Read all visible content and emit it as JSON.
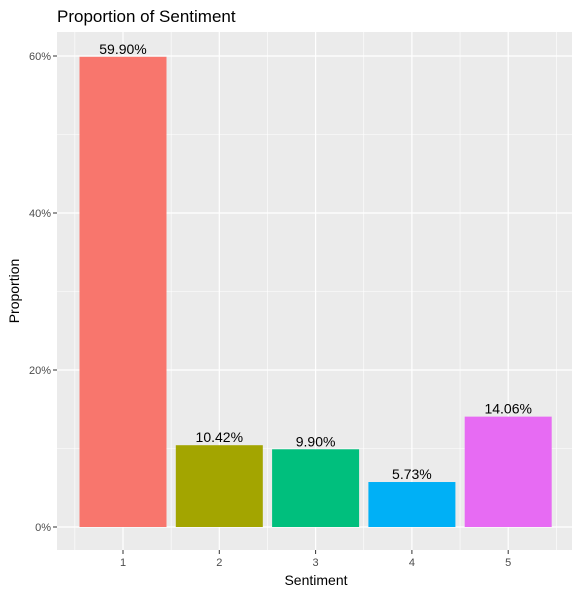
{
  "chart_data": {
    "type": "bar",
    "title": "Proportion of Sentiment",
    "xlabel": "Sentiment",
    "ylabel": "Proportion",
    "categories": [
      "1",
      "2",
      "3",
      "4",
      "5"
    ],
    "values": [
      59.9,
      10.42,
      9.9,
      5.73,
      14.06
    ],
    "value_labels": [
      "59.90%",
      "10.42%",
      "9.90%",
      "5.73%",
      "14.06%"
    ],
    "colors": [
      "#F8766D",
      "#A3A500",
      "#00BF7D",
      "#00B0F6",
      "#E76BF3"
    ],
    "ylim": [
      0,
      63
    ],
    "yticks": [
      0,
      20,
      40,
      60
    ],
    "ytick_labels": [
      "0%",
      "20%",
      "40%",
      "60%"
    ],
    "grid": true,
    "legend": "none",
    "panel_background": "#EBEBEB",
    "grid_color": "#FFFFFF"
  }
}
